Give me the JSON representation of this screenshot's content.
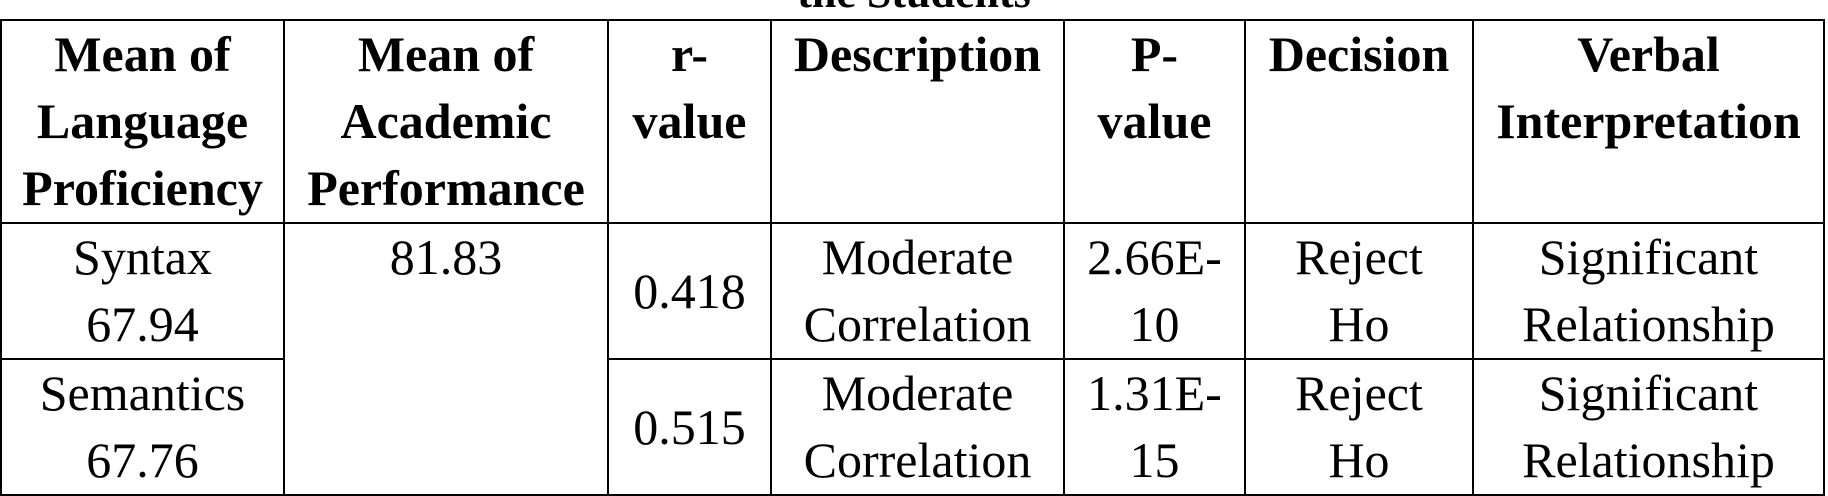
{
  "caption": "the Students",
  "table": {
    "headers": [
      [
        "Mean of",
        "Language",
        "Proficiency"
      ],
      [
        "Mean of",
        "Academic",
        "Performance"
      ],
      [
        "r-",
        "value"
      ],
      [
        "Description"
      ],
      [
        "P-",
        "value"
      ],
      [
        "Decision"
      ],
      [
        "Verbal",
        "Interpretation"
      ]
    ],
    "academic_mean": "81.83",
    "rows": [
      {
        "language": [
          "Syntax",
          "67.94"
        ],
        "r_value": "0.418",
        "description": [
          "Moderate",
          "Correlation"
        ],
        "p_value": [
          "2.66E-",
          "10"
        ],
        "decision": [
          "Reject",
          "Ho"
        ],
        "interpretation": [
          "Significant",
          "Relationship"
        ]
      },
      {
        "language": [
          "Semantics",
          "67.76"
        ],
        "r_value": "0.515",
        "description": [
          "Moderate",
          "Correlation"
        ],
        "p_value": [
          "1.31E-",
          "15"
        ],
        "decision": [
          "Reject",
          "Ho"
        ],
        "interpretation": [
          "Significant",
          "Relationship"
        ]
      }
    ]
  }
}
